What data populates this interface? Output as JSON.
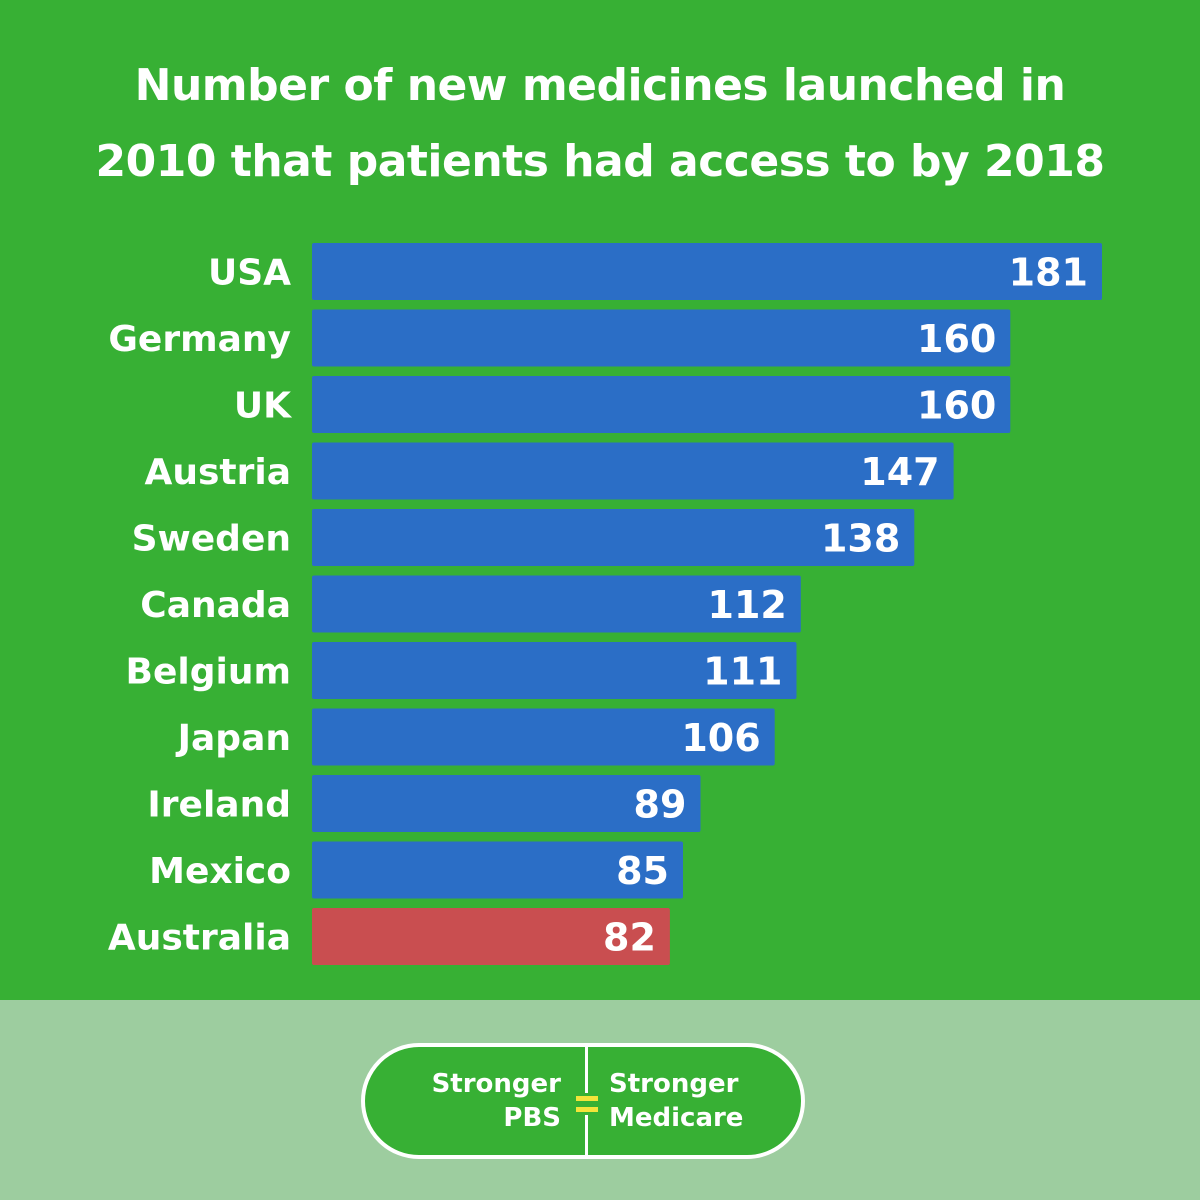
{
  "chart_data": {
    "type": "bar",
    "orientation": "horizontal",
    "title": "Number of new medicines launched in 2010 that patients had access to by 2018",
    "title_lines": [
      "Number of new medicines launched in",
      "2010 that patients had access to by 2018"
    ],
    "categories": [
      "USA",
      "Germany",
      "UK",
      "Austria",
      "Sweden",
      "Canada",
      "Belgium",
      "Japan",
      "Ireland",
      "Mexico",
      "Australia"
    ],
    "values": [
      181,
      160,
      160,
      147,
      138,
      112,
      111,
      106,
      89,
      85,
      82
    ],
    "xlabel": "",
    "ylabel": "",
    "xlim": [
      0,
      181
    ],
    "grid": false,
    "colors": {
      "default": "#2b6ec6",
      "highlight": "#c94e50",
      "highlight_category": "Australia",
      "background": "#37b034",
      "label_text": "#ffffff"
    }
  },
  "footer": {
    "background": "#9dcd9f",
    "logo": {
      "left_line1": "Stronger",
      "left_line2": "PBS",
      "right_line1": "Stronger",
      "right_line2": "Medicare",
      "equals_color": "#f3e43a"
    }
  }
}
